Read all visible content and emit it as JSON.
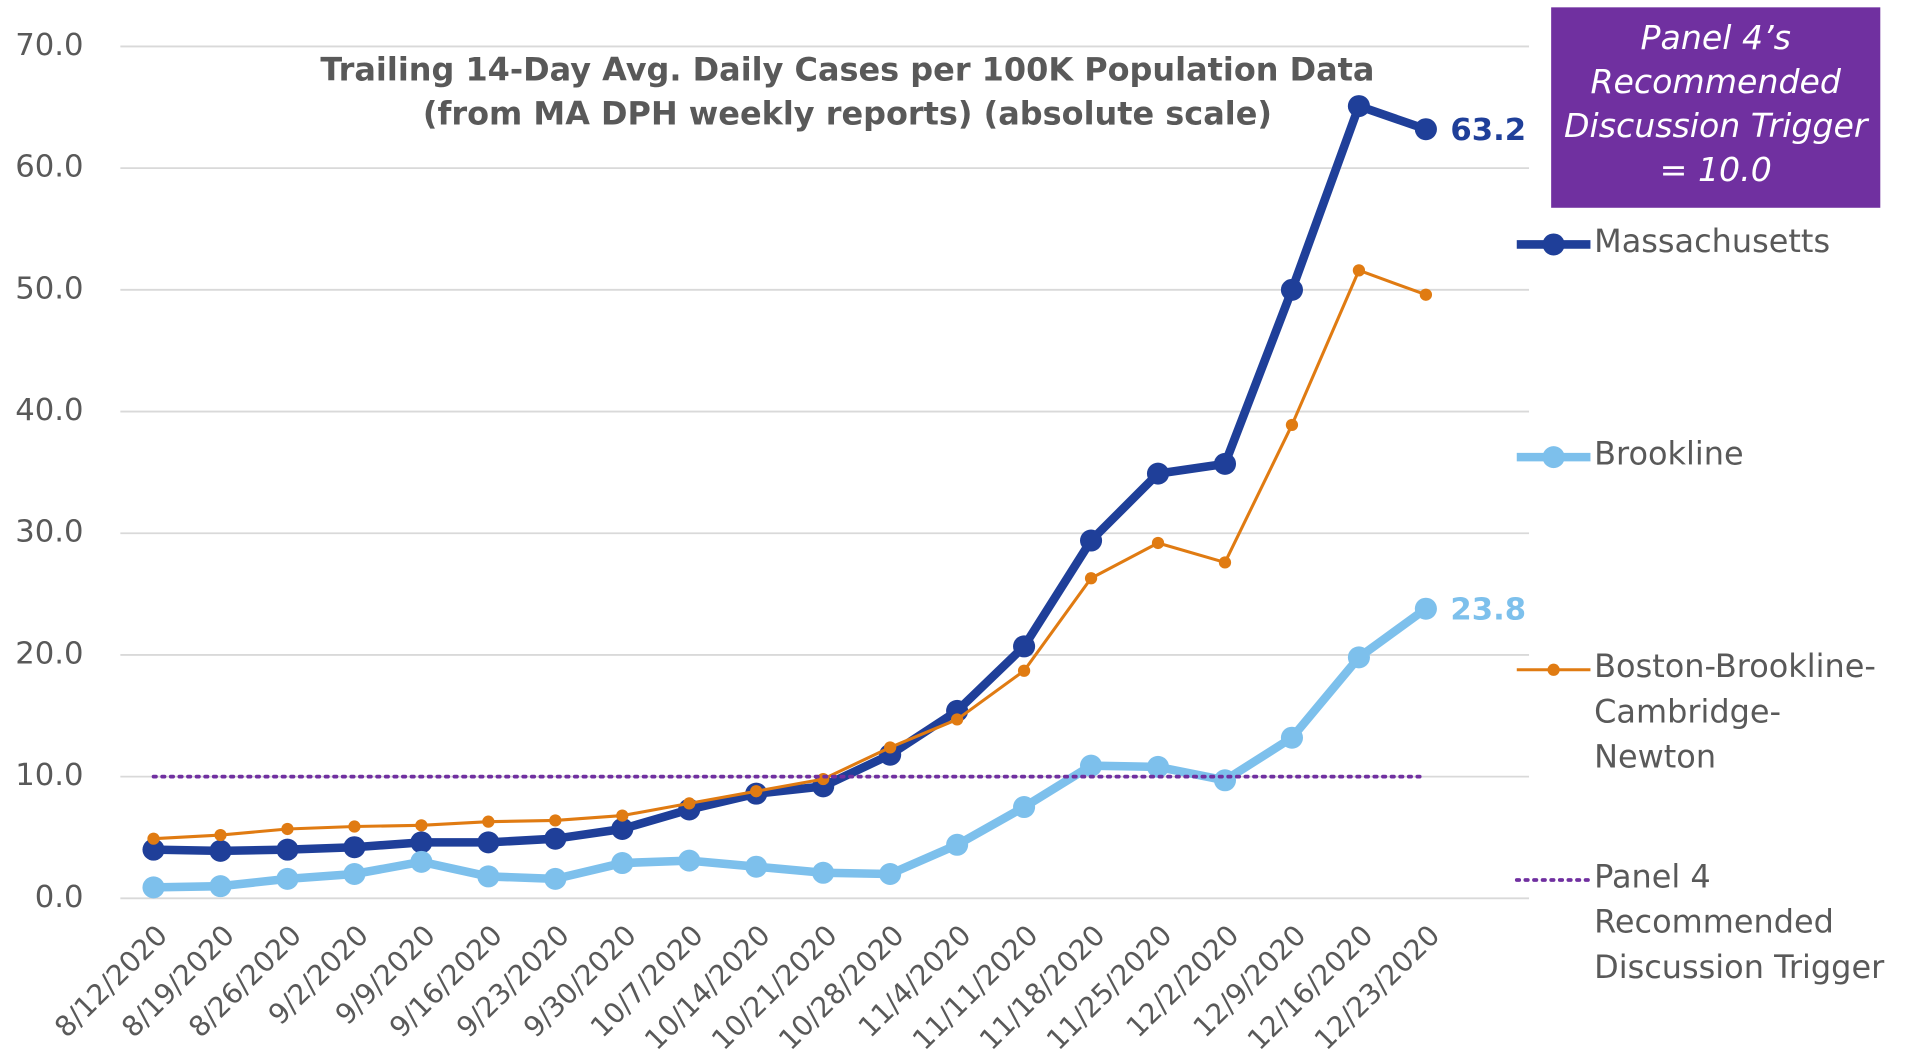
{
  "chart_data": {
    "type": "line",
    "title": "Trailing 14-Day Avg. Daily Cases per 100K Population Data (from MA DPH weekly reports) (absolute scale)",
    "annotation": "Panel 4’s Recommended Discussion Trigger = 10.0",
    "categories": [
      "8/12/2020",
      "8/19/2020",
      "8/26/2020",
      "9/2/2020",
      "9/9/2020",
      "9/16/2020",
      "9/23/2020",
      "9/30/2020",
      "10/7/2020",
      "10/14/2020",
      "10/21/2020",
      "10/28/2020",
      "11/4/2020",
      "11/11/2020",
      "11/18/2020",
      "11/25/2020",
      "12/2/2020",
      "12/9/2020",
      "12/16/2020",
      "12/23/2020"
    ],
    "series": [
      {
        "name": "Massachusetts",
        "color": "#1f3f99",
        "width": 7,
        "marker": 9,
        "label_last": true,
        "values": [
          4.0,
          3.9,
          4.0,
          4.2,
          4.6,
          4.6,
          4.9,
          5.7,
          7.3,
          8.6,
          9.2,
          11.8,
          15.4,
          20.7,
          29.4,
          34.9,
          35.7,
          50.0,
          65.1,
          63.2
        ]
      },
      {
        "name": "Brookline",
        "color": "#7dc0ec",
        "width": 7,
        "marker": 9,
        "label_last": true,
        "values": [
          0.9,
          1.0,
          1.6,
          2.0,
          3.0,
          1.8,
          1.6,
          2.9,
          3.1,
          2.6,
          2.1,
          2.0,
          4.4,
          7.5,
          10.9,
          10.8,
          9.7,
          13.2,
          19.8,
          23.8
        ]
      },
      {
        "name": "Boston-Brookline-Cambridge-Newton",
        "color": "#e07b12",
        "width": 2.5,
        "marker": 5,
        "label_last": false,
        "values": [
          4.9,
          5.2,
          5.7,
          5.9,
          6.0,
          6.3,
          6.4,
          6.8,
          7.8,
          8.8,
          9.8,
          12.4,
          14.7,
          18.7,
          26.3,
          29.2,
          27.6,
          38.9,
          51.6,
          49.6
        ]
      },
      {
        "name": "Panel 4 Recommended Discussion Trigger",
        "color": "#7030a0",
        "width": 3,
        "marker": 0,
        "dotted": true,
        "label_last": false,
        "values": [
          10,
          10,
          10,
          10,
          10,
          10,
          10,
          10,
          10,
          10,
          10,
          10,
          10,
          10,
          10,
          10,
          10,
          10,
          10,
          10
        ]
      }
    ],
    "ylim": [
      0,
      70
    ],
    "yticks": [
      {
        "value": 0,
        "label": "0.0"
      },
      {
        "value": 10,
        "label": "10.0"
      },
      {
        "value": 20,
        "label": "20.0"
      },
      {
        "value": 30,
        "label": "30.0"
      },
      {
        "value": 40,
        "label": "40.0"
      },
      {
        "value": 50,
        "label": "50.0"
      },
      {
        "value": 60,
        "label": "60.0"
      },
      {
        "value": 70,
        "label": "70.0"
      }
    ],
    "grid": true,
    "legend": "right"
  }
}
